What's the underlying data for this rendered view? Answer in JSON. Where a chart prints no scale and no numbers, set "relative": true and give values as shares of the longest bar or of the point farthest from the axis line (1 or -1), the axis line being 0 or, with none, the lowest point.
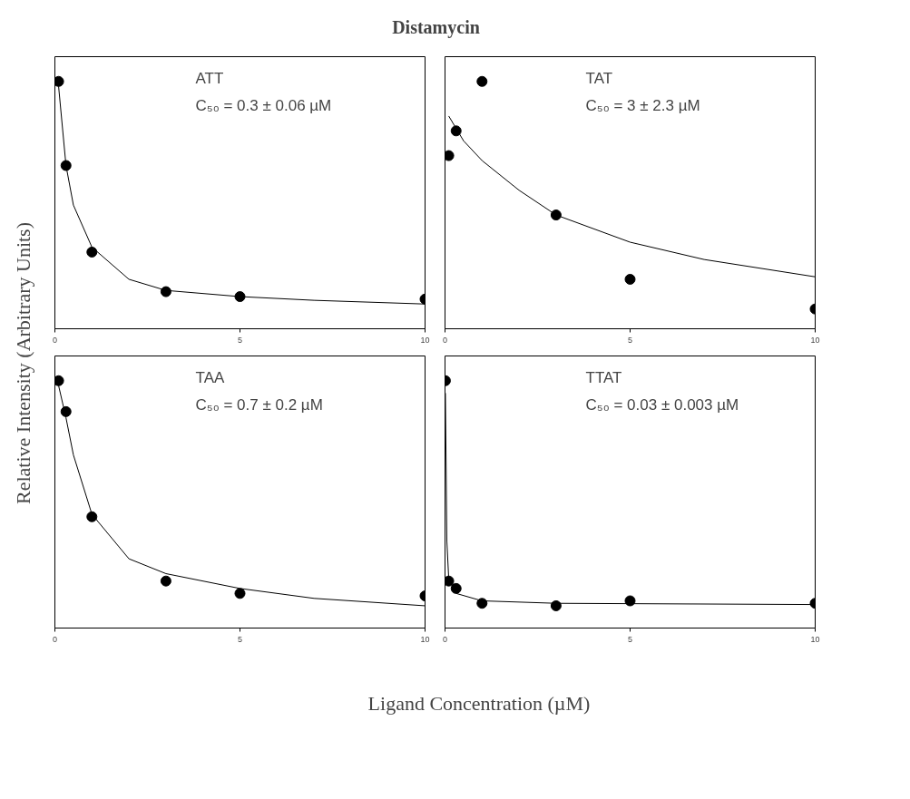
{
  "chart_data": [
    {
      "type": "scatter",
      "title": "Distamycin",
      "ylabel": "Relative Intensity (Arbitrary Units)",
      "relative": true,
      "xlim": [
        0,
        10
      ],
      "xticks": [
        0,
        5,
        10
      ],
      "grid": false,
      "annotations": [
        "ATT",
        "C₅₀ = 0.3 ± 0.06 µM"
      ],
      "x": [
        0.1,
        0.3,
        1,
        3,
        5,
        10
      ],
      "series": [
        {
          "color": "#000000",
          "marker": "circle",
          "values": [
            1,
            0.66,
            0.31,
            0.15,
            0.13,
            0.12
          ]
        },
        {
          "type": "line",
          "color": "#000000",
          "x": [
            0.1,
            0.3,
            0.5,
            1,
            2,
            3,
            5,
            7,
            10
          ],
          "values": [
            0.98,
            0.66,
            0.5,
            0.33,
            0.2,
            0.155,
            0.13,
            0.115,
            0.1
          ]
        }
      ]
    },
    {
      "type": "scatter",
      "relative": true,
      "xlim": [
        0,
        10
      ],
      "xticks": [
        0,
        5,
        10
      ],
      "grid": false,
      "annotations": [
        "TAT",
        "C₅₀ = 3 ± 2.3 µM"
      ],
      "x": [
        0.1,
        0.3,
        1,
        3,
        5,
        10
      ],
      "series": [
        {
          "color": "#000000",
          "marker": "circle",
          "values": [
            0.7,
            0.8,
            1,
            0.46,
            0.2,
            0.08
          ]
        },
        {
          "type": "line",
          "color": "#000000",
          "x": [
            0.1,
            0.5,
            1,
            2,
            3,
            5,
            7,
            10
          ],
          "values": [
            0.86,
            0.76,
            0.68,
            0.56,
            0.46,
            0.35,
            0.28,
            0.21
          ]
        }
      ]
    },
    {
      "type": "scatter",
      "relative": true,
      "xlim": [
        0,
        10
      ],
      "xticks": [
        0,
        5,
        10
      ],
      "grid": false,
      "annotations": [
        "TAA",
        "C₅₀ = 0.7 ± 0.2 µM"
      ],
      "x": [
        0.1,
        0.3,
        1,
        3,
        5,
        10
      ],
      "series": [
        {
          "color": "#000000",
          "marker": "circle",
          "values": [
            1,
            0.875,
            0.45,
            0.19,
            0.14,
            0.13
          ]
        },
        {
          "type": "line",
          "color": "#000000",
          "x": [
            0.1,
            0.3,
            0.5,
            1,
            2,
            3,
            5,
            7,
            10
          ],
          "values": [
            0.98,
            0.85,
            0.7,
            0.46,
            0.28,
            0.22,
            0.16,
            0.12,
            0.09
          ]
        }
      ]
    },
    {
      "type": "scatter",
      "xlabel": "Ligand Concentration (µM)",
      "relative": true,
      "xlim": [
        0,
        10
      ],
      "xticks": [
        0,
        5,
        10
      ],
      "grid": false,
      "annotations": [
        "TTAT",
        "C₅₀ = 0.03 ± 0.003 µM"
      ],
      "x": [
        0.01,
        0.1,
        0.3,
        1,
        3,
        5,
        10
      ],
      "series": [
        {
          "color": "#000000",
          "marker": "circle",
          "values": [
            1,
            0.19,
            0.16,
            0.1,
            0.09,
            0.11,
            0.1
          ]
        },
        {
          "type": "line",
          "color": "#000000",
          "x": [
            0.01,
            0.05,
            0.1,
            0.3,
            1,
            3,
            10
          ],
          "values": [
            0.95,
            0.35,
            0.2,
            0.14,
            0.11,
            0.1,
            0.095
          ]
        }
      ]
    }
  ]
}
